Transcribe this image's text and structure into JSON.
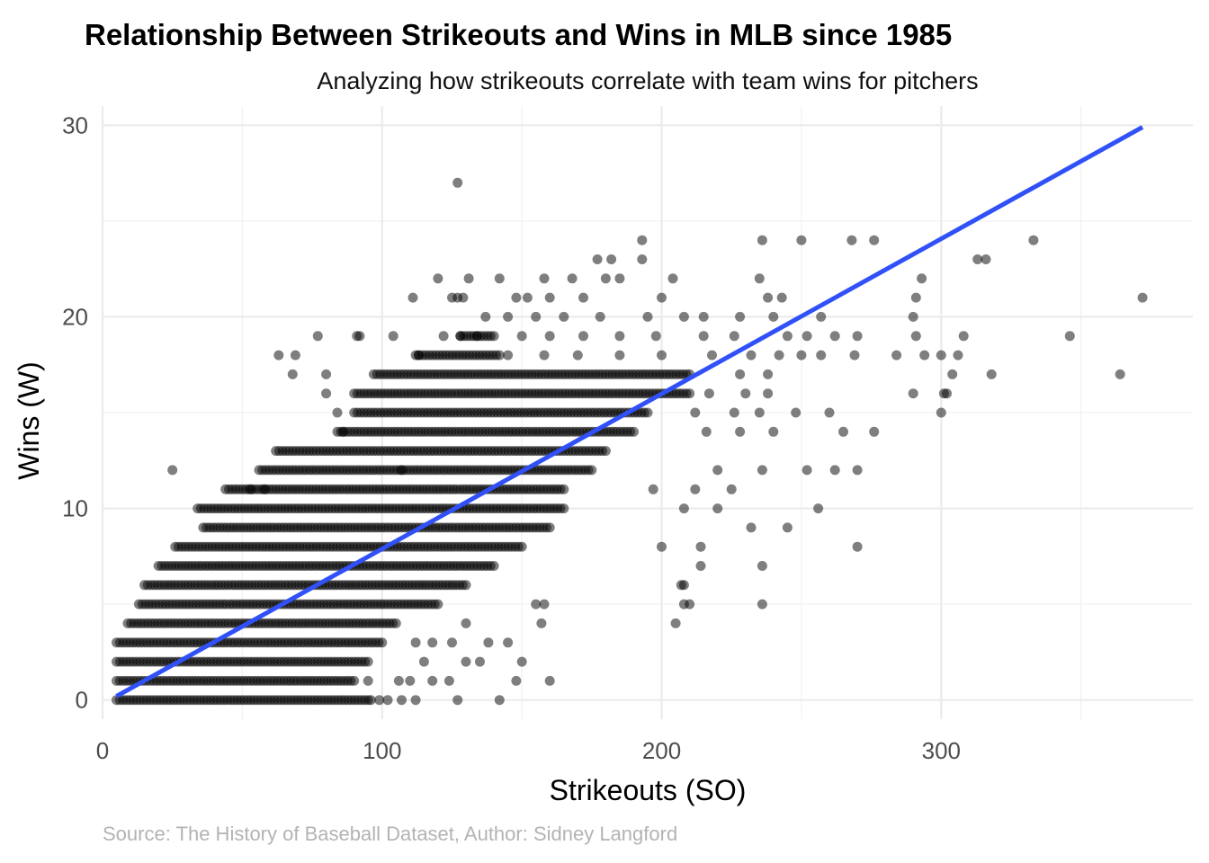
{
  "chart_data": {
    "type": "scatter",
    "title": "Relationship Between Strikeouts and Wins in MLB since 1985",
    "subtitle": "Analyzing how strikeouts correlate with team wins for pitchers",
    "xlabel": "Strikeouts (SO)",
    "ylabel": "Wins (W)",
    "caption": "Source: The History of Baseball Dataset, Author: Sidney Langford",
    "xlim": [
      0,
      390
    ],
    "ylim": [
      -1,
      31
    ],
    "x_ticks": [
      0,
      100,
      200,
      300
    ],
    "x_tick_labels": [
      "0",
      "100",
      "200",
      "300"
    ],
    "y_ticks": [
      0,
      10,
      20,
      30
    ],
    "y_tick_labels": [
      "0",
      "10",
      "20",
      "30"
    ],
    "grid": true,
    "legend": "none",
    "point_color": "#000000",
    "point_opacity": 0.5,
    "trend_line": {
      "color": "#3050f8",
      "x": [
        5,
        372
      ],
      "y": [
        0.2,
        29.9
      ]
    },
    "dense_band": [
      {
        "w": 0,
        "so_min": 5,
        "so_max": 95
      },
      {
        "w": 1,
        "so_min": 5,
        "so_max": 90
      },
      {
        "w": 2,
        "so_min": 5,
        "so_max": 95
      },
      {
        "w": 3,
        "so_min": 5,
        "so_max": 100
      },
      {
        "w": 4,
        "so_min": 9,
        "so_max": 105
      },
      {
        "w": 5,
        "so_min": 13,
        "so_max": 120
      },
      {
        "w": 6,
        "so_min": 15,
        "so_max": 130
      },
      {
        "w": 7,
        "so_min": 20,
        "so_max": 140
      },
      {
        "w": 8,
        "so_min": 26,
        "so_max": 150
      },
      {
        "w": 9,
        "so_min": 36,
        "so_max": 160
      },
      {
        "w": 10,
        "so_min": 34,
        "so_max": 165
      },
      {
        "w": 11,
        "so_min": 44,
        "so_max": 165
      },
      {
        "w": 12,
        "so_min": 56,
        "so_max": 175
      },
      {
        "w": 13,
        "so_min": 62,
        "so_max": 180
      },
      {
        "w": 14,
        "so_min": 84,
        "so_max": 190
      },
      {
        "w": 15,
        "so_min": 90,
        "so_max": 195
      },
      {
        "w": 16,
        "so_min": 90,
        "so_max": 210
      },
      {
        "w": 17,
        "so_min": 97,
        "so_max": 210
      },
      {
        "w": 18,
        "so_min": 112,
        "so_max": 142
      },
      {
        "w": 19,
        "so_min": 128,
        "so_max": 140
      }
    ],
    "points": [
      [
        127,
        27
      ],
      [
        333,
        24
      ],
      [
        193,
        24
      ],
      [
        236,
        24
      ],
      [
        250,
        24
      ],
      [
        268,
        24
      ],
      [
        276,
        24
      ],
      [
        177,
        23
      ],
      [
        182,
        23
      ],
      [
        193,
        23
      ],
      [
        313,
        23
      ],
      [
        316,
        23
      ],
      [
        120,
        22
      ],
      [
        131,
        22
      ],
      [
        142,
        22
      ],
      [
        158,
        22
      ],
      [
        168,
        22
      ],
      [
        180,
        22
      ],
      [
        185,
        22
      ],
      [
        204,
        22
      ],
      [
        235,
        22
      ],
      [
        293,
        22
      ],
      [
        111,
        21
      ],
      [
        125,
        21
      ],
      [
        127,
        21
      ],
      [
        129,
        21
      ],
      [
        148,
        21
      ],
      [
        152,
        21
      ],
      [
        160,
        21
      ],
      [
        172,
        21
      ],
      [
        200,
        21
      ],
      [
        238,
        21
      ],
      [
        243,
        21
      ],
      [
        291,
        21
      ],
      [
        372,
        21
      ],
      [
        137,
        20
      ],
      [
        145,
        20
      ],
      [
        155,
        20
      ],
      [
        165,
        20
      ],
      [
        178,
        20
      ],
      [
        195,
        20
      ],
      [
        208,
        20
      ],
      [
        215,
        20
      ],
      [
        228,
        20
      ],
      [
        240,
        20
      ],
      [
        257,
        20
      ],
      [
        290,
        20
      ],
      [
        91,
        19
      ],
      [
        92,
        19
      ],
      [
        77,
        19
      ],
      [
        104,
        19
      ],
      [
        122,
        19
      ],
      [
        128,
        19
      ],
      [
        134,
        19
      ],
      [
        150,
        19
      ],
      [
        160,
        19
      ],
      [
        172,
        19
      ],
      [
        185,
        19
      ],
      [
        198,
        19
      ],
      [
        215,
        19
      ],
      [
        226,
        19
      ],
      [
        245,
        19
      ],
      [
        252,
        19
      ],
      [
        262,
        19
      ],
      [
        270,
        19
      ],
      [
        291,
        19
      ],
      [
        308,
        19
      ],
      [
        346,
        19
      ],
      [
        63,
        18
      ],
      [
        69,
        18
      ],
      [
        113,
        18
      ],
      [
        145,
        18
      ],
      [
        158,
        18
      ],
      [
        170,
        18
      ],
      [
        185,
        18
      ],
      [
        200,
        18
      ],
      [
        218,
        18
      ],
      [
        232,
        18
      ],
      [
        242,
        18
      ],
      [
        250,
        18
      ],
      [
        257,
        18
      ],
      [
        269,
        18
      ],
      [
        284,
        18
      ],
      [
        294,
        18
      ],
      [
        300,
        18
      ],
      [
        306,
        18
      ],
      [
        68,
        17
      ],
      [
        80,
        17
      ],
      [
        228,
        17
      ],
      [
        238,
        17
      ],
      [
        304,
        17
      ],
      [
        318,
        17
      ],
      [
        364,
        17
      ],
      [
        80,
        16
      ],
      [
        217,
        16
      ],
      [
        230,
        16
      ],
      [
        238,
        16
      ],
      [
        290,
        16
      ],
      [
        301,
        16
      ],
      [
        302,
        16
      ],
      [
        84,
        15
      ],
      [
        212,
        15
      ],
      [
        226,
        15
      ],
      [
        235,
        15
      ],
      [
        248,
        15
      ],
      [
        260,
        15
      ],
      [
        300,
        15
      ],
      [
        86,
        14
      ],
      [
        216,
        14
      ],
      [
        228,
        14
      ],
      [
        240,
        14
      ],
      [
        265,
        14
      ],
      [
        276,
        14
      ],
      [
        25,
        12
      ],
      [
        107,
        12
      ],
      [
        220,
        12
      ],
      [
        236,
        12
      ],
      [
        252,
        12
      ],
      [
        262,
        12
      ],
      [
        270,
        12
      ],
      [
        53,
        11
      ],
      [
        58,
        11
      ],
      [
        197,
        11
      ],
      [
        225,
        11
      ],
      [
        212,
        11
      ],
      [
        256,
        10
      ],
      [
        208,
        10
      ],
      [
        220,
        10
      ],
      [
        245,
        9
      ],
      [
        232,
        9
      ],
      [
        200,
        8
      ],
      [
        214,
        8
      ],
      [
        270,
        8
      ],
      [
        214,
        7
      ],
      [
        236,
        7
      ],
      [
        208,
        6
      ],
      [
        207,
        6
      ],
      [
        155,
        5
      ],
      [
        158,
        5
      ],
      [
        208,
        5
      ],
      [
        236,
        5
      ],
      [
        210,
        5
      ],
      [
        157,
        4
      ],
      [
        205,
        4
      ],
      [
        145,
        3
      ],
      [
        130,
        2
      ],
      [
        135,
        2
      ],
      [
        150,
        2
      ],
      [
        148,
        1
      ],
      [
        160,
        1
      ],
      [
        142,
        0
      ],
      [
        127,
        0
      ],
      [
        112,
        0
      ],
      [
        124,
        1
      ],
      [
        118,
        1
      ],
      [
        102,
        0
      ],
      [
        107,
        0
      ],
      [
        99,
        0
      ],
      [
        96,
        0
      ],
      [
        95,
        1
      ],
      [
        106,
        1
      ],
      [
        110,
        1
      ],
      [
        115,
        2
      ],
      [
        112,
        3
      ],
      [
        118,
        3
      ],
      [
        125,
        3
      ],
      [
        130,
        4
      ],
      [
        138,
        3
      ]
    ]
  }
}
